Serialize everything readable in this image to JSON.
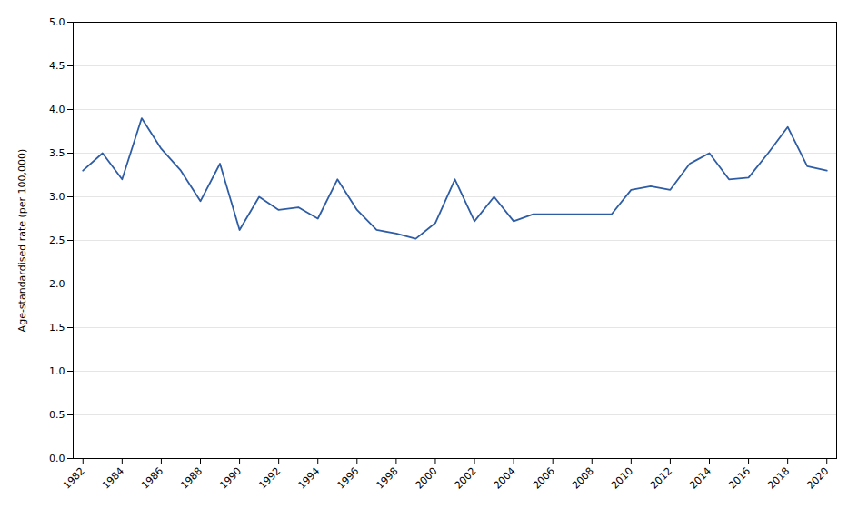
{
  "chart_data": {
    "type": "line",
    "x": [
      1982,
      1983,
      1984,
      1985,
      1986,
      1987,
      1988,
      1989,
      1990,
      1991,
      1992,
      1993,
      1994,
      1995,
      1996,
      1997,
      1998,
      1999,
      2000,
      2001,
      2002,
      2003,
      2004,
      2005,
      2006,
      2007,
      2008,
      2009,
      2010,
      2011,
      2012,
      2013,
      2014,
      2015,
      2016,
      2017,
      2018,
      2019,
      2020
    ],
    "values": [
      3.3,
      3.5,
      3.2,
      3.9,
      3.55,
      3.3,
      2.95,
      3.38,
      2.62,
      3.0,
      2.85,
      2.88,
      2.75,
      3.2,
      2.85,
      2.62,
      2.58,
      2.52,
      2.7,
      3.2,
      2.72,
      3.0,
      2.72,
      2.8,
      2.8,
      2.8,
      2.8,
      2.8,
      3.08,
      3.12,
      3.08,
      3.38,
      3.5,
      3.2,
      3.22,
      3.5,
      3.8,
      3.35,
      3.3
    ],
    "color": "#2E5DA6",
    "ylabel": "Age-standardised rate (per 100,000)",
    "ylim": [
      0.0,
      5.0
    ],
    "yticks": [
      {
        "value": 0,
        "label": "0.0"
      },
      0.5,
      {
        "value": 1,
        "label": "1.0"
      },
      1.5,
      {
        "value": 2,
        "label": "2.0"
      },
      2.5,
      {
        "value": 3,
        "label": "3.0"
      },
      3.5,
      {
        "value": 4,
        "label": "4.0"
      },
      4.5,
      {
        "value": 5,
        "label": "5.0"
      }
    ],
    "xlim": [
      1981.5,
      2020.5
    ],
    "xticks": [
      1982,
      1984,
      1986,
      1988,
      1990,
      1992,
      1994,
      1996,
      1998,
      2000,
      2002,
      2004,
      2006,
      2008,
      2010,
      2012,
      2014,
      2016,
      2018,
      2020
    ],
    "grid": true
  }
}
